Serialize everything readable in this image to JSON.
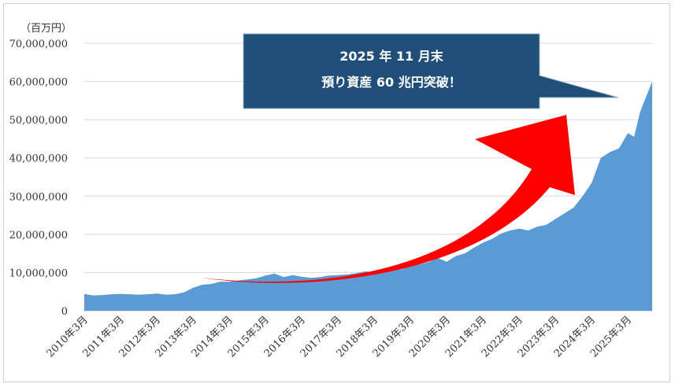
{
  "chart_data": {
    "type": "area",
    "unit_label": "（百万円）",
    "ylim": [
      0,
      70000000
    ],
    "y_ticks": [
      "0",
      "10,000,000",
      "20,000,000",
      "30,000,000",
      "40,000,000",
      "50,000,000",
      "60,000,000",
      "70,000,000"
    ],
    "x_tick_labels": [
      "2010年3月",
      "2011年3月",
      "2012年3月",
      "2013年3月",
      "2014年3月",
      "2015年3月",
      "2016年3月",
      "2017年3月",
      "2018年3月",
      "2019年3月",
      "2020年3月",
      "2021年3月",
      "2022年3月",
      "2023年3月",
      "2024年3月",
      "2025年3月"
    ],
    "grid": true,
    "area_color": "#5b9bd5",
    "series": [
      {
        "points": [
          [
            "2010-03",
            4400000
          ],
          [
            "2010-06",
            4000000
          ],
          [
            "2010-09",
            4100000
          ],
          [
            "2010-12",
            4300000
          ],
          [
            "2011-03",
            4400000
          ],
          [
            "2011-06",
            4300000
          ],
          [
            "2011-09",
            4200000
          ],
          [
            "2011-12",
            4300000
          ],
          [
            "2012-03",
            4500000
          ],
          [
            "2012-06",
            4200000
          ],
          [
            "2012-09",
            4300000
          ],
          [
            "2012-12",
            4800000
          ],
          [
            "2013-03",
            6000000
          ],
          [
            "2013-06",
            6800000
          ],
          [
            "2013-09",
            7000000
          ],
          [
            "2013-12",
            7600000
          ],
          [
            "2014-03",
            7600000
          ],
          [
            "2014-06",
            7900000
          ],
          [
            "2014-09",
            8200000
          ],
          [
            "2014-12",
            8500000
          ],
          [
            "2015-03",
            9200000
          ],
          [
            "2015-06",
            9700000
          ],
          [
            "2015-09",
            8800000
          ],
          [
            "2015-12",
            9300000
          ],
          [
            "2016-03",
            8900000
          ],
          [
            "2016-06",
            8600000
          ],
          [
            "2016-09",
            8800000
          ],
          [
            "2016-12",
            9200000
          ],
          [
            "2017-03",
            9300000
          ],
          [
            "2017-06",
            9500000
          ],
          [
            "2017-09",
            9800000
          ],
          [
            "2017-12",
            10300000
          ],
          [
            "2018-03",
            10100000
          ],
          [
            "2018-06",
            10600000
          ],
          [
            "2018-09",
            11200000
          ],
          [
            "2018-12",
            10800000
          ],
          [
            "2019-03",
            11900000
          ],
          [
            "2019-06",
            12100000
          ],
          [
            "2019-09",
            12700000
          ],
          [
            "2019-12",
            13800000
          ],
          [
            "2020-03",
            12800000
          ],
          [
            "2020-06",
            14300000
          ],
          [
            "2020-09",
            15000000
          ],
          [
            "2020-12",
            16500000
          ],
          [
            "2021-03",
            17800000
          ],
          [
            "2021-06",
            18800000
          ],
          [
            "2021-09",
            20200000
          ],
          [
            "2021-12",
            21000000
          ],
          [
            "2022-03",
            21500000
          ],
          [
            "2022-06",
            21000000
          ],
          [
            "2022-09",
            22000000
          ],
          [
            "2022-12",
            22500000
          ],
          [
            "2023-03",
            24000000
          ],
          [
            "2023-06",
            25500000
          ],
          [
            "2023-09",
            27000000
          ],
          [
            "2023-12",
            30000000
          ],
          [
            "2024-03",
            33500000
          ],
          [
            "2024-06",
            40000000
          ],
          [
            "2024-09",
            41500000
          ],
          [
            "2024-12",
            42500000
          ],
          [
            "2025-03",
            46500000
          ],
          [
            "2025-05",
            45500000
          ],
          [
            "2025-07",
            52000000
          ],
          [
            "2025-09",
            56000000
          ],
          [
            "2025-11",
            60000000
          ]
        ]
      }
    ],
    "callout": {
      "line1": "2025 年 11 月末",
      "line2": "預り資産 60 兆円突破！",
      "fill": "#1f4e79"
    },
    "arrow_color": "#ff0000"
  }
}
